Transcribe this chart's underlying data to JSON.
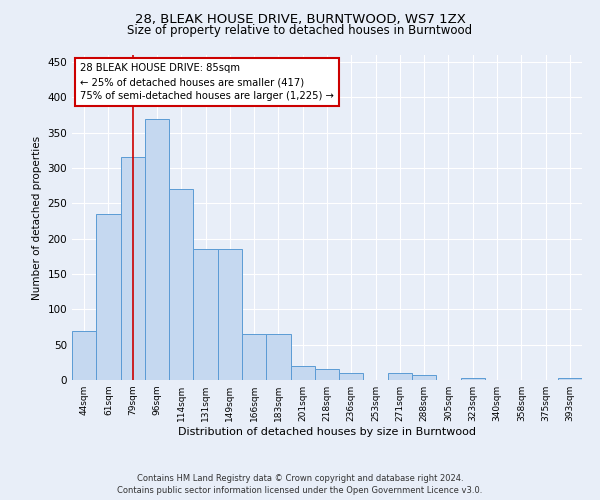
{
  "title": "28, BLEAK HOUSE DRIVE, BURNTWOOD, WS7 1ZX",
  "subtitle": "Size of property relative to detached houses in Burntwood",
  "xlabel": "Distribution of detached houses by size in Burntwood",
  "ylabel": "Number of detached properties",
  "categories": [
    "44sqm",
    "61sqm",
    "79sqm",
    "96sqm",
    "114sqm",
    "131sqm",
    "149sqm",
    "166sqm",
    "183sqm",
    "201sqm",
    "218sqm",
    "236sqm",
    "253sqm",
    "271sqm",
    "288sqm",
    "305sqm",
    "323sqm",
    "340sqm",
    "358sqm",
    "375sqm",
    "393sqm"
  ],
  "values": [
    70,
    235,
    315,
    370,
    270,
    185,
    185,
    65,
    65,
    20,
    15,
    10,
    0,
    10,
    7,
    0,
    3,
    0,
    0,
    0,
    3
  ],
  "bar_color": "#c5d8f0",
  "bar_edge_color": "#5b9bd5",
  "annotation_line1": "28 BLEAK HOUSE DRIVE: 85sqm",
  "annotation_line2": "← 25% of detached houses are smaller (417)",
  "annotation_line3": "75% of semi-detached houses are larger (1,225) →",
  "annotation_box_color": "#ffffff",
  "annotation_box_edge": "#cc0000",
  "red_line_x": 2.0,
  "ylim": [
    0,
    460
  ],
  "yticks": [
    0,
    50,
    100,
    150,
    200,
    250,
    300,
    350,
    400,
    450
  ],
  "footer_line1": "Contains HM Land Registry data © Crown copyright and database right 2024.",
  "footer_line2": "Contains public sector information licensed under the Open Government Licence v3.0.",
  "background_color": "#e8eef8"
}
